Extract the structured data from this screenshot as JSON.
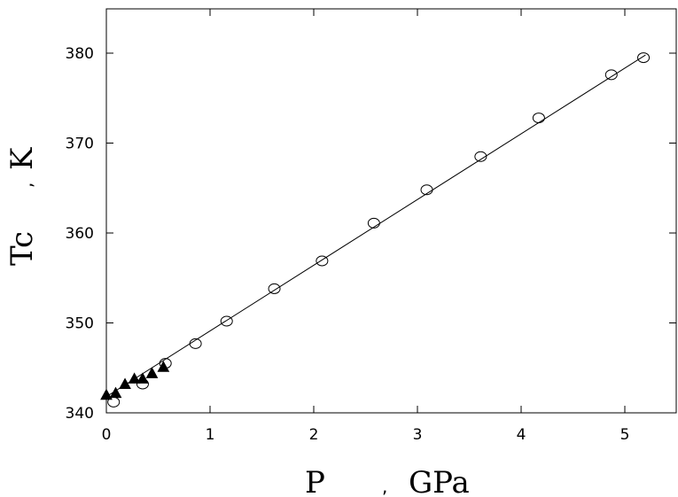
{
  "chart_data": {
    "type": "scatter",
    "xlabel": "P",
    "xunit": "GPa",
    "ylabel": "Tc",
    "yunit": "K",
    "xlim": [
      0,
      5.5
    ],
    "ylim": [
      340,
      385
    ],
    "xticks": [
      0,
      1,
      2,
      3,
      4,
      5
    ],
    "xtick_labels": [
      "0",
      "1",
      "2",
      "3",
      "4",
      "5"
    ],
    "yticks": [
      340,
      350,
      360,
      370,
      380
    ],
    "ytick_labels": [
      "340",
      "350",
      "360",
      "370",
      "380"
    ],
    "grid": false,
    "series": [
      {
        "marker": "open-circle",
        "x": [
          0.07,
          0.35,
          0.57,
          0.86,
          1.16,
          1.62,
          2.08,
          2.58,
          3.09,
          3.61,
          4.17,
          4.87,
          5.18
        ],
        "y": [
          341.2,
          343.2,
          345.5,
          347.7,
          350.2,
          353.8,
          356.9,
          361.1,
          364.8,
          368.5,
          372.8,
          377.6,
          379.5
        ]
      },
      {
        "marker": "filled-triangle",
        "x": [
          0.0,
          0.09,
          0.18,
          0.27,
          0.35,
          0.44,
          0.55
        ],
        "y": [
          342.0,
          342.2,
          343.2,
          343.8,
          343.8,
          344.4,
          345.1
        ]
      },
      {
        "marker": "line",
        "x": [
          0.0,
          5.2
        ],
        "y": [
          341.8,
          379.8
        ]
      }
    ]
  }
}
